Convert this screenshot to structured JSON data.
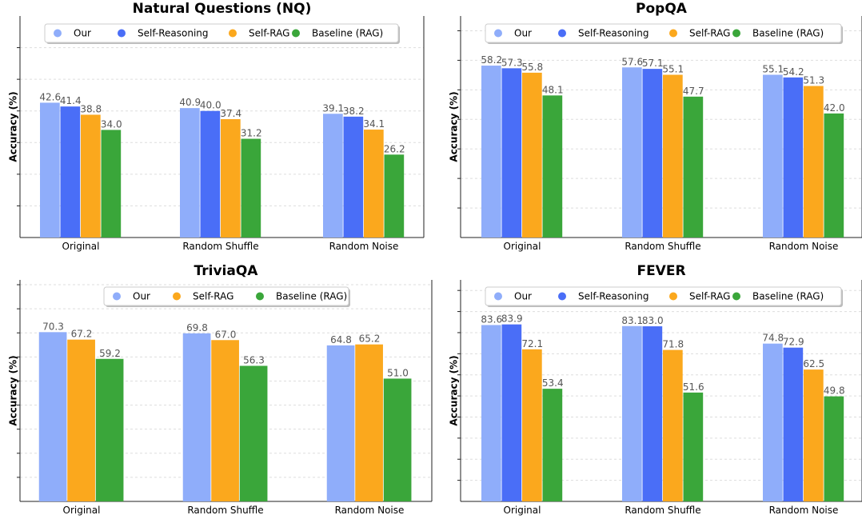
{
  "colors": {
    "Our": "#8fadfa",
    "Self-Reasoning": "#4a6ef7",
    "Self-RAG": "#fba81d",
    "Baseline (RAG)": "#3aa63a",
    "value_label": "#555555",
    "axis": "#222222",
    "grid": "#dddddd"
  },
  "chart_data": [
    {
      "type": "bar",
      "title": "Natural Questions (NQ)",
      "ylabel": "Accuracy (%)",
      "xlabel": "",
      "categories": [
        "Original",
        "Random Shuffle",
        "Random Noise"
      ],
      "series": [
        {
          "name": "Our",
          "values": [
            42.6,
            40.9,
            39.1
          ]
        },
        {
          "name": "Self-Reasoning",
          "values": [
            41.4,
            40.0,
            38.2
          ]
        },
        {
          "name": "Self-RAG",
          "values": [
            38.8,
            37.4,
            34.1
          ]
        },
        {
          "name": "Baseline (RAG)",
          "values": [
            34.0,
            31.2,
            26.2
          ]
        }
      ],
      "ylim": [
        0,
        70
      ],
      "grid": true,
      "legend": "top-center"
    },
    {
      "type": "bar",
      "title": "PopQA",
      "ylabel": "Accuracy (%)",
      "xlabel": "",
      "categories": [
        "Original",
        "Random Shuffle",
        "Random Noise"
      ],
      "series": [
        {
          "name": "Our",
          "values": [
            58.2,
            57.6,
            55.1
          ]
        },
        {
          "name": "Self-Reasoning",
          "values": [
            57.3,
            57.1,
            54.2
          ]
        },
        {
          "name": "Self-RAG",
          "values": [
            55.8,
            55.1,
            51.3
          ]
        },
        {
          "name": "Baseline (RAG)",
          "values": [
            48.1,
            47.7,
            42.0
          ]
        }
      ],
      "ylim": [
        0,
        75
      ],
      "grid": true,
      "legend": "top-center"
    },
    {
      "type": "bar",
      "title": "TriviaQA",
      "ylabel": "Accuracy (%)",
      "xlabel": "",
      "categories": [
        "Original",
        "Random Shuffle",
        "Random Noise"
      ],
      "series": [
        {
          "name": "Our",
          "values": [
            70.3,
            69.8,
            64.8
          ]
        },
        {
          "name": "Self-RAG",
          "values": [
            67.2,
            67.0,
            65.2
          ]
        },
        {
          "name": "Baseline (RAG)",
          "values": [
            59.2,
            56.3,
            51.0
          ]
        }
      ],
      "ylim": [
        0,
        92
      ],
      "grid": true,
      "legend": "top-center"
    },
    {
      "type": "bar",
      "title": "FEVER",
      "ylabel": "Accuracy (%)",
      "xlabel": "",
      "categories": [
        "Original",
        "Random Shuffle",
        "Random Noise"
      ],
      "series": [
        {
          "name": "Our",
          "values": [
            83.6,
            83.1,
            74.8
          ]
        },
        {
          "name": "Self-Reasoning",
          "values": [
            83.9,
            83.0,
            72.9
          ]
        },
        {
          "name": "Self-RAG",
          "values": [
            72.1,
            71.8,
            62.5
          ]
        },
        {
          "name": "Baseline (RAG)",
          "values": [
            53.4,
            51.6,
            49.8
          ]
        }
      ],
      "ylim": [
        0,
        105
      ],
      "grid": true,
      "legend": "top-center"
    }
  ]
}
